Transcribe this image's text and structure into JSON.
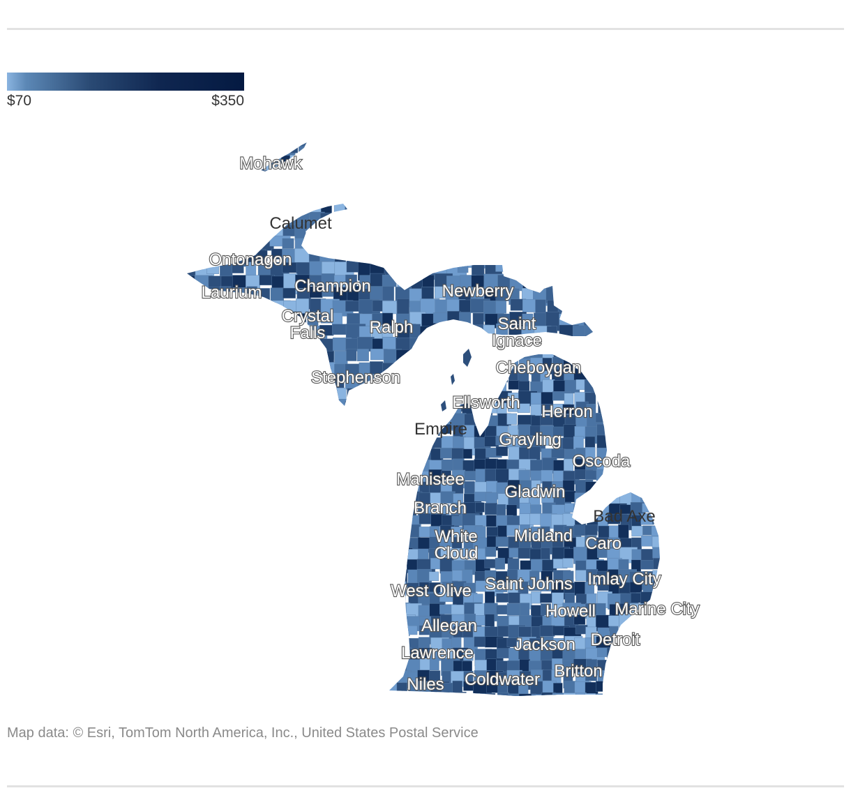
{
  "legend": {
    "min_label": "$70",
    "max_label": "$350",
    "min_value": 70,
    "max_value": 350,
    "color_low": "#8ab4e0",
    "color_high": "#041a42"
  },
  "map": {
    "region": "Michigan",
    "fill_palette": [
      "#8ab4e0",
      "#6f9cce",
      "#5a86b8",
      "#4a73a3",
      "#3b6190",
      "#2d4f7c",
      "#1f3f6b",
      "#122f5a"
    ],
    "city_labels": [
      {
        "id": "mohawk",
        "text": "Mohawk",
        "style": "halo"
      },
      {
        "id": "calumet",
        "text": "Calumet",
        "style": "plain"
      },
      {
        "id": "ontonagon",
        "text": "Ontonagon",
        "style": "halo"
      },
      {
        "id": "laurium",
        "text": "Laurium",
        "style": "halo"
      },
      {
        "id": "champion",
        "text": "Champion",
        "style": "halo"
      },
      {
        "id": "newberry",
        "text": "Newberry",
        "style": "halo"
      },
      {
        "id": "crystal-falls",
        "text": "Crystal\nFalls",
        "style": "halo"
      },
      {
        "id": "ralph",
        "text": "Ralph",
        "style": "halo"
      },
      {
        "id": "saint-ignace",
        "text": "Saint\nIgnace",
        "style": "halo"
      },
      {
        "id": "cheboygan",
        "text": "Cheboygan",
        "style": "halo"
      },
      {
        "id": "stephenson",
        "text": "Stephenson",
        "style": "halo"
      },
      {
        "id": "ellsworth",
        "text": "Ellsworth",
        "style": "halo"
      },
      {
        "id": "herron",
        "text": "Herron",
        "style": "halo"
      },
      {
        "id": "empire",
        "text": "Empire",
        "style": "plain"
      },
      {
        "id": "grayling",
        "text": "Grayling",
        "style": "halo"
      },
      {
        "id": "oscoda",
        "text": "Oscoda",
        "style": "halo"
      },
      {
        "id": "manistee",
        "text": "Manistee",
        "style": "halo"
      },
      {
        "id": "gladwin",
        "text": "Gladwin",
        "style": "halo"
      },
      {
        "id": "branch",
        "text": "Branch",
        "style": "halo"
      },
      {
        "id": "bad-axe",
        "text": "Bad Axe",
        "style": "plain"
      },
      {
        "id": "white-cloud",
        "text": "White\nCloud",
        "style": "halo"
      },
      {
        "id": "midland",
        "text": "Midland",
        "style": "halo"
      },
      {
        "id": "caro",
        "text": "Caro",
        "style": "halo"
      },
      {
        "id": "imlay-city",
        "text": "Imlay City",
        "style": "halo"
      },
      {
        "id": "west-olive",
        "text": "West Olive",
        "style": "halo"
      },
      {
        "id": "saint-johns",
        "text": "Saint Johns",
        "style": "halo"
      },
      {
        "id": "howell",
        "text": "Howell",
        "style": "halo"
      },
      {
        "id": "marine-city",
        "text": "Marine City",
        "style": "halo"
      },
      {
        "id": "allegan",
        "text": "Allegan",
        "style": "halo"
      },
      {
        "id": "detroit",
        "text": "Detroit",
        "style": "halo"
      },
      {
        "id": "jackson",
        "text": "Jackson",
        "style": "halo"
      },
      {
        "id": "lawrence",
        "text": "Lawrence",
        "style": "halo"
      },
      {
        "id": "britton",
        "text": "Britton",
        "style": "halo"
      },
      {
        "id": "coldwater",
        "text": "Coldwater",
        "style": "halo"
      },
      {
        "id": "niles",
        "text": "Niles",
        "style": "halo"
      }
    ]
  },
  "attribution": "Map data: © Esri, TomTom North America, Inc., United States Postal Service"
}
